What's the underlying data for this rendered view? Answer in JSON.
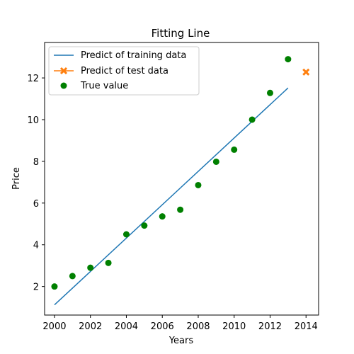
{
  "chart_data": {
    "type": "line",
    "title": "Fitting Line",
    "xlabel": "Years",
    "ylabel": "Price",
    "xlim": [
      1999.45,
      2014.7
    ],
    "ylim": [
      0.63,
      13.7
    ],
    "xticks": [
      2000,
      2002,
      2004,
      2006,
      2008,
      2010,
      2012,
      2014
    ],
    "yticks": [
      2,
      4,
      6,
      8,
      10,
      12
    ],
    "grid": false,
    "legend_position": "top-left",
    "series": [
      {
        "name": "Predict of training data",
        "kind": "line",
        "color": "#1f77b4",
        "x": [
          2000,
          2013
        ],
        "y": [
          1.12,
          11.52
        ]
      },
      {
        "name": "Predict of test data",
        "kind": "x-marker",
        "color": "#ff7f0e",
        "x": [
          2014
        ],
        "y": [
          12.28
        ]
      },
      {
        "name": "True value",
        "kind": "scatter",
        "color": "#008000",
        "x": [
          2000,
          2001,
          2002,
          2003,
          2004,
          2005,
          2006,
          2007,
          2008,
          2009,
          2010,
          2011,
          2012,
          2013
        ],
        "y": [
          2.0,
          2.5,
          2.9,
          3.13,
          4.5,
          4.92,
          5.36,
          5.68,
          6.86,
          7.98,
          8.56,
          10.0,
          11.28,
          12.9
        ]
      }
    ]
  }
}
